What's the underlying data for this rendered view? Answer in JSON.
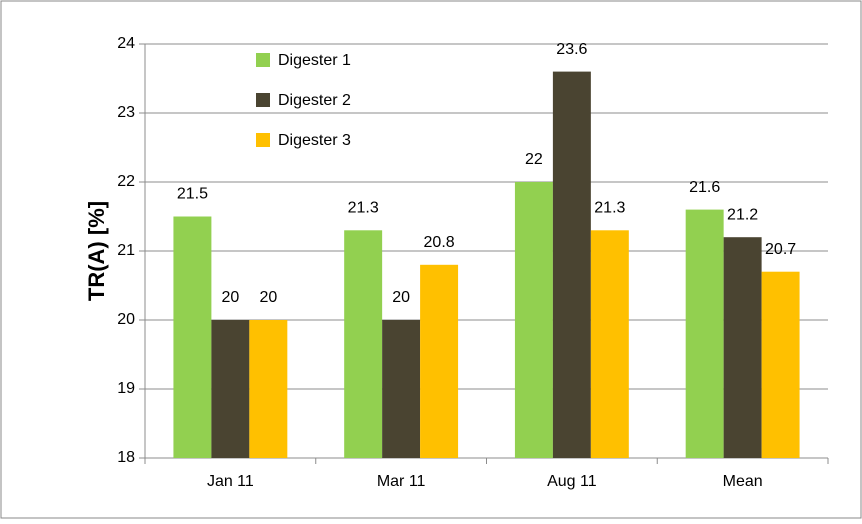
{
  "chart_data": {
    "type": "bar",
    "y_label": "TR(A) [%]",
    "categories": [
      "Jan 11",
      "Mar 11",
      "Aug 11",
      "Mean"
    ],
    "series": [
      {
        "name": "Digester 1",
        "color": "#92d050",
        "values": [
          21.5,
          21.3,
          22,
          21.6
        ]
      },
      {
        "name": "Digester 2",
        "color": "#4a4431",
        "values": [
          20,
          20,
          23.6,
          21.2
        ]
      },
      {
        "name": "Digester 3",
        "color": "#ffc000",
        "values": [
          20,
          20.8,
          21.3,
          20.7
        ]
      }
    ],
    "ylim": [
      18,
      24
    ],
    "yticks": [
      18,
      19,
      20,
      21,
      22,
      23,
      24
    ],
    "grid": true,
    "legend": "top-left"
  }
}
